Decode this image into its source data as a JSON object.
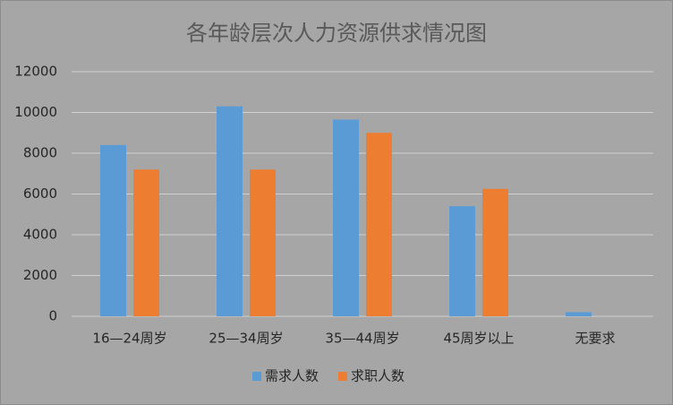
{
  "chart_data": {
    "type": "bar",
    "title": "各年龄层次人力资源供求情况图",
    "categories": [
      "16—24周岁",
      "25—34周岁",
      "35—44周岁",
      "45周岁以上",
      "无要求"
    ],
    "series": [
      {
        "name": "需求人数",
        "color": "#5b9bd5",
        "values": [
          8400,
          10300,
          9650,
          5400,
          200
        ]
      },
      {
        "name": "求职人数",
        "color": "#ed7d31",
        "values": [
          7200,
          7200,
          9000,
          6250,
          0
        ]
      }
    ],
    "ylim": [
      0,
      12000
    ],
    "yticks": [
      0,
      2000,
      4000,
      6000,
      8000,
      10000,
      12000
    ],
    "grid": true,
    "legend": "bottom"
  }
}
